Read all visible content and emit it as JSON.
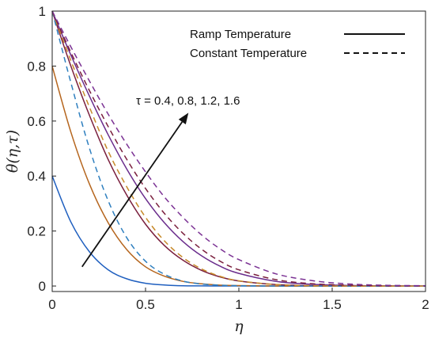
{
  "chart_data": {
    "type": "line",
    "xlabel": "η",
    "ylabel": "θ(η,τ)",
    "xlim": [
      0,
      2
    ],
    "ylim": [
      -0.02,
      1.0
    ],
    "xticks": [
      0,
      0.5,
      1,
      1.5,
      2
    ],
    "xtick_labels": [
      "0",
      "0.5",
      "1",
      "1.5",
      "2"
    ],
    "yticks": [
      0,
      0.2,
      0.4,
      0.6,
      0.8,
      1
    ],
    "ytick_labels": [
      "0",
      "0.2",
      "0.4",
      "0.6",
      "0.8",
      "1"
    ],
    "grid": false,
    "legend_position": "top-right",
    "legend": [
      {
        "label": "Ramp Temperature",
        "style": "solid"
      },
      {
        "label": "Constant Temperature",
        "style": "dashed"
      }
    ],
    "annotation": {
      "text": "τ = 0.4, 0.8, 1.2, 1.6",
      "arrow": {
        "from": [
          0.16,
          0.07
        ],
        "to": [
          0.73,
          0.63
        ]
      }
    },
    "x": [
      0,
      0.1,
      0.2,
      0.3,
      0.4,
      0.5,
      0.6,
      0.7,
      0.8,
      0.9,
      1.0,
      1.2,
      1.4,
      1.6,
      1.8,
      2.0
    ],
    "series": [
      {
        "tau": 0.4,
        "style": "solid",
        "color": "#1f5fbf",
        "values": [
          0.4,
          0.233,
          0.124,
          0.059,
          0.026,
          0.01,
          0.004,
          0.001,
          0.0005,
          0.0002,
          0.0001,
          0,
          0,
          0,
          0,
          0
        ]
      },
      {
        "tau": 0.8,
        "style": "solid",
        "color": "#b5651d",
        "values": [
          0.8,
          0.56,
          0.37,
          0.23,
          0.132,
          0.07,
          0.036,
          0.017,
          0.008,
          0.003,
          0.0015,
          0.0003,
          0,
          0,
          0,
          0
        ]
      },
      {
        "tau": 1.2,
        "style": "solid",
        "color": "#7a1f3d",
        "values": [
          1.0,
          0.8,
          0.62,
          0.46,
          0.33,
          0.225,
          0.148,
          0.094,
          0.057,
          0.033,
          0.018,
          0.005,
          0.001,
          0.0003,
          0,
          0
        ]
      },
      {
        "tau": 1.6,
        "style": "solid",
        "color": "#6a2c8c",
        "values": [
          1.0,
          0.84,
          0.69,
          0.55,
          0.425,
          0.318,
          0.231,
          0.162,
          0.11,
          0.072,
          0.046,
          0.017,
          0.006,
          0.002,
          0.0005,
          0.0001
        ]
      },
      {
        "tau": 0.4,
        "style": "dashed",
        "color": "#2e7fbf",
        "values": [
          1.0,
          0.74,
          0.5,
          0.31,
          0.175,
          0.09,
          0.043,
          0.018,
          0.007,
          0.003,
          0.001,
          0,
          0,
          0,
          0,
          0
        ]
      },
      {
        "tau": 0.8,
        "style": "dashed",
        "color": "#c78a2a",
        "values": [
          1.0,
          0.82,
          0.65,
          0.49,
          0.36,
          0.25,
          0.165,
          0.104,
          0.062,
          0.035,
          0.019,
          0.005,
          0.001,
          0,
          0,
          0
        ]
      },
      {
        "tau": 1.2,
        "style": "dashed",
        "color": "#7a1f3d",
        "values": [
          1.0,
          0.85,
          0.71,
          0.58,
          0.46,
          0.355,
          0.265,
          0.192,
          0.134,
          0.09,
          0.059,
          0.023,
          0.008,
          0.003,
          0.001,
          0.0002
        ]
      },
      {
        "tau": 1.6,
        "style": "dashed",
        "color": "#7b3294",
        "values": [
          1.0,
          0.87,
          0.745,
          0.625,
          0.515,
          0.415,
          0.325,
          0.25,
          0.186,
          0.135,
          0.096,
          0.044,
          0.019,
          0.007,
          0.0025,
          0.001
        ]
      }
    ]
  }
}
